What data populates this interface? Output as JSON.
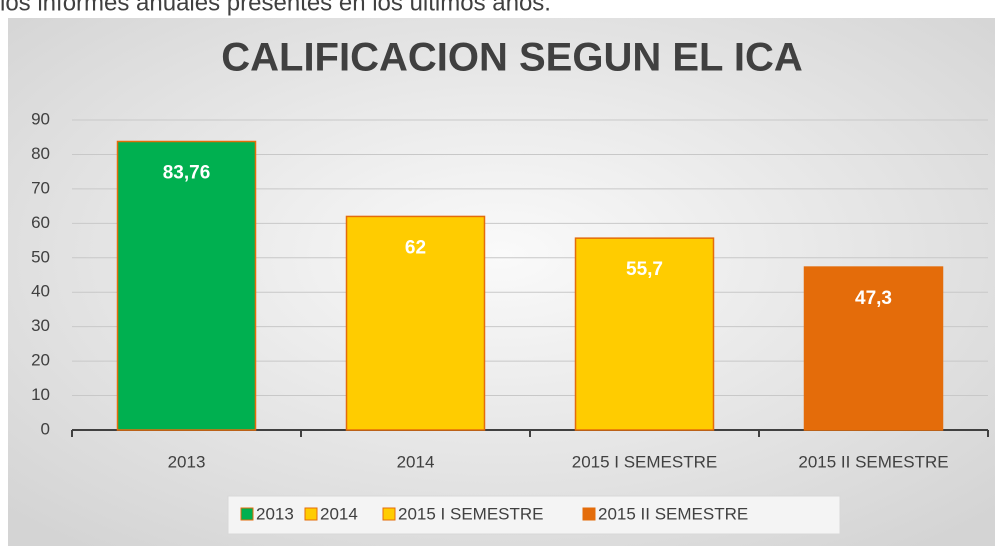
{
  "caption": "los informes anuales presentes en los últimos años.",
  "chart_data": {
    "type": "bar",
    "title": "CALIFICACION SEGUN EL ICA",
    "categories": [
      "2013",
      "2014",
      "2015 I SEMESTRE",
      "2015 II SEMESTRE"
    ],
    "values": [
      83.76,
      62,
      55.7,
      47.3
    ],
    "value_labels": [
      "83,76",
      "62",
      "55,7",
      "47,3"
    ],
    "colors": [
      "#00b050",
      "#ffcc00",
      "#ffcc00",
      "#e46c0a"
    ],
    "ylim": [
      0,
      90
    ],
    "yticks": [
      0,
      10,
      20,
      30,
      40,
      50,
      60,
      70,
      80,
      90
    ],
    "grid": true,
    "legend": "bottom"
  }
}
